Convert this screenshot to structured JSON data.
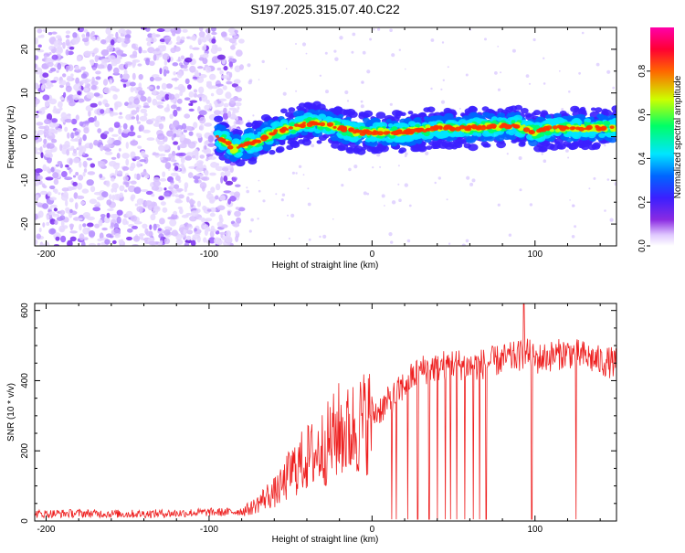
{
  "title": "S197.2025.315.07.40.C22",
  "chart_data": [
    {
      "type": "heatmap",
      "name": "spectrogram",
      "xlabel": "Height of straight line (km)",
      "ylabel": "Frequency (Hz)",
      "xlim": [
        -207,
        150
      ],
      "ylim": [
        -25,
        25
      ],
      "xticks": [
        -200,
        -100,
        0,
        100
      ],
      "xtick_labels": [
        "-200",
        "-100",
        "0",
        "100"
      ],
      "yticks": [
        -20,
        -10,
        0,
        10,
        20
      ],
      "ytick_labels": [
        "-20",
        "-10",
        "0",
        "10",
        "20"
      ],
      "colorbar": {
        "label": "Normalized spectral amplitude",
        "range": [
          0,
          1
        ],
        "ticks": [
          0.0,
          0.2,
          0.4,
          0.6,
          0.8
        ],
        "tick_labels": [
          "0.0",
          "0.2",
          "0.4",
          "0.6",
          "0.8"
        ],
        "colors": [
          "#ffffff",
          "#e0c8ff",
          "#8a2be2",
          "#3b1fff",
          "#0066ff",
          "#00e5ff",
          "#00ff66",
          "#ccff00",
          "#ff6600",
          "#ff0033",
          "#ff00aa"
        ]
      },
      "ridge": {
        "description_units": "frequency (Hz) vs height (km)",
        "x": [
          -95,
          -90,
          -85,
          -80,
          -70,
          -60,
          -50,
          -40,
          -30,
          -20,
          -10,
          0,
          10,
          20,
          40,
          60,
          80,
          90,
          100,
          110,
          130,
          150
        ],
        "y": [
          0,
          -1,
          -3,
          -2,
          -1,
          1,
          2,
          3,
          3,
          2,
          1,
          1,
          1,
          1,
          2,
          2,
          2.5,
          2.5,
          1,
          2,
          2,
          2
        ]
      },
      "noise_region_x": [
        -207,
        -80
      ]
    },
    {
      "type": "line",
      "name": "snr",
      "xlabel": "Height of straight line (km)",
      "ylabel": "SNR (10 * v/v)",
      "xlim": [
        -207,
        150
      ],
      "ylim": [
        0,
        620
      ],
      "xticks": [
        -200,
        -100,
        0,
        100
      ],
      "xtick_labels": [
        "-200",
        "-100",
        "0",
        "100"
      ],
      "yticks": [
        0,
        200,
        400,
        600
      ],
      "ytick_labels": [
        "0",
        "200",
        "400",
        "600"
      ],
      "series": [
        {
          "name": "SNR",
          "color": "#ee2020",
          "x": [
            -207,
            -180,
            -150,
            -120,
            -100,
            -90,
            -80,
            -75,
            -70,
            -65,
            -60,
            -55,
            -50,
            -45,
            -40,
            -35,
            -30,
            -25,
            -20,
            -15,
            -10,
            -5,
            0,
            5,
            8,
            10,
            15,
            20,
            25,
            30,
            40,
            50,
            60,
            70,
            80,
            90,
            95,
            100,
            110,
            120,
            130,
            140,
            150
          ],
          "values": [
            20,
            22,
            20,
            22,
            25,
            25,
            28,
            35,
            50,
            70,
            80,
            100,
            140,
            160,
            180,
            190,
            210,
            230,
            260,
            250,
            270,
            280,
            300,
            320,
            330,
            340,
            360,
            390,
            410,
            430,
            440,
            450,
            440,
            450,
            460,
            470,
            480,
            460,
            470,
            480,
            470,
            455,
            450
          ],
          "dropouts_x": [
            12,
            15,
            22,
            28,
            35,
            40,
            45,
            48,
            52,
            57,
            62,
            66,
            70,
            98,
            125
          ],
          "spike_x": 93,
          "spike_value": 640
        }
      ]
    }
  ]
}
